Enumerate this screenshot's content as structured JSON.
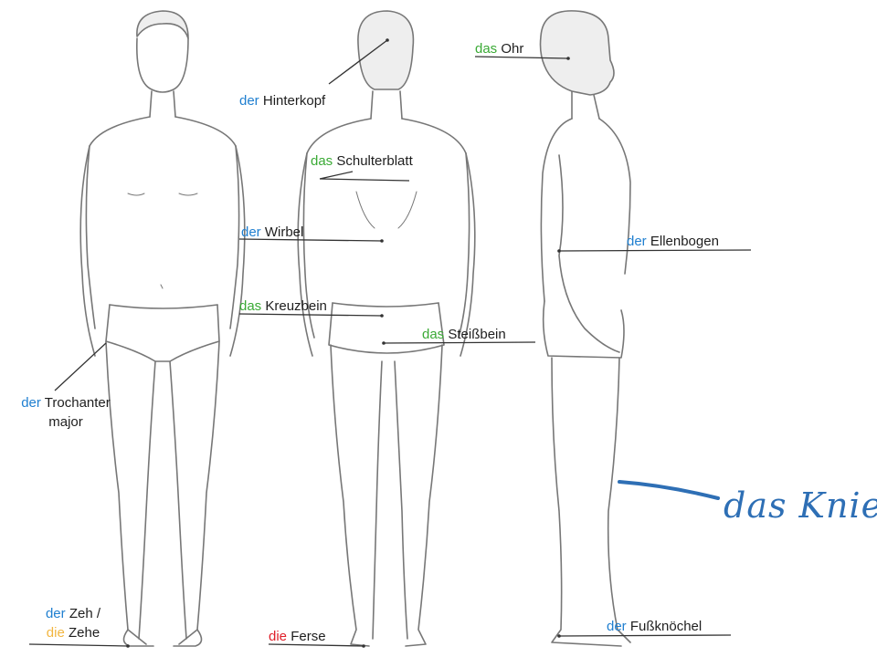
{
  "colors": {
    "der": "#1f7fd0",
    "das": "#3aaa35",
    "die_red": "#e0202a",
    "die_yellow": "#f2b640",
    "line": "#333333",
    "figure": "#777777",
    "handwriting": "#2e6fb5"
  },
  "labels": {
    "hinterkopf": {
      "article": "der",
      "noun": "Hinterkopf"
    },
    "ohr": {
      "article": "das",
      "noun": "Ohr"
    },
    "schulterblatt": {
      "article": "das",
      "noun": "Schulterblatt"
    },
    "wirbel": {
      "article": "der",
      "noun": "Wirbel"
    },
    "ellenbogen": {
      "article": "der",
      "noun": "Ellenbogen"
    },
    "kreuzbein": {
      "article": "das",
      "noun": "Kreuzbein"
    },
    "steissbein": {
      "article": "das",
      "noun": "Steißbein"
    },
    "trochanter": {
      "article": "der",
      "noun": "Trochanter",
      "line2": "major"
    },
    "zeh": {
      "article": "der",
      "noun": "Zeh /",
      "article2": "die",
      "noun2": "Zehe"
    },
    "ferse": {
      "article": "die",
      "noun": "Ferse"
    },
    "fussknoechel": {
      "article": "der",
      "noun": "Fußknöchel"
    }
  },
  "handwritten": {
    "knie": "das Knie"
  }
}
